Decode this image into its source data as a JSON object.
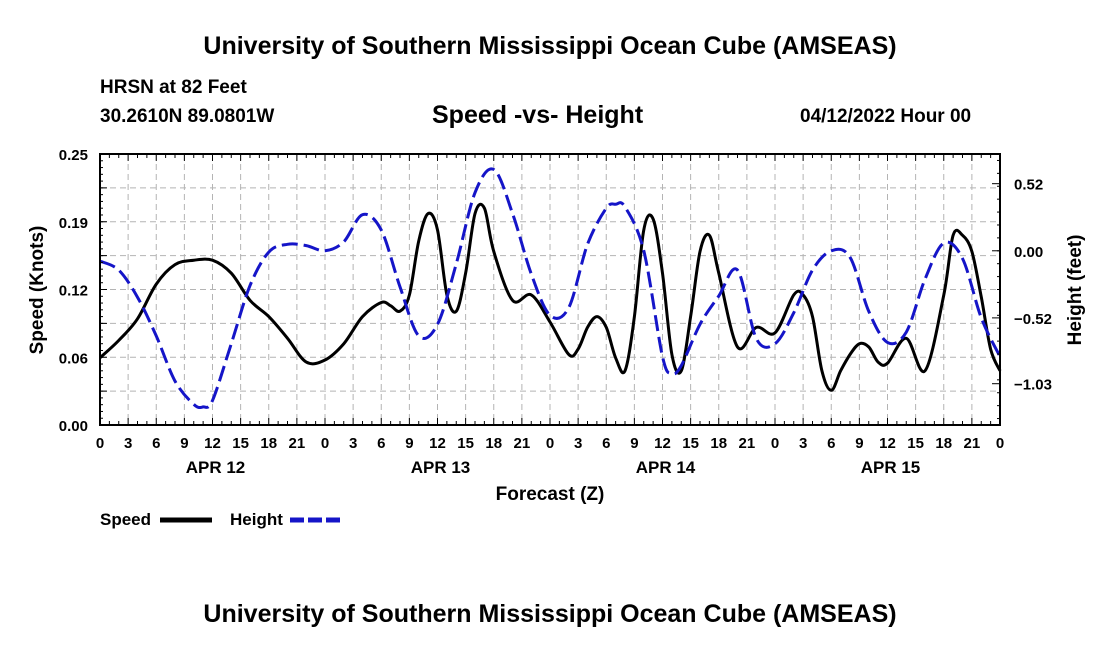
{
  "header": {
    "title": "University of Southern Mississippi Ocean Cube (AMSEAS)",
    "station": "HRSN at 82 Feet",
    "coords": "30.2610N  89.0801W",
    "date": "04/12/2022 Hour 00"
  },
  "footer": {
    "title": "University of Southern Mississippi Ocean Cube (AMSEAS)"
  },
  "legend": {
    "speed_label": "Speed",
    "height_label": "Height"
  },
  "colors": {
    "speed": "#000000",
    "height": "#1515c8",
    "grid": "#b4b4b4"
  },
  "chart_data": {
    "type": "line",
    "title": "Speed -vs- Height",
    "xlabel": "Forecast (Z)",
    "ylabel_left": "Speed (Knots)",
    "ylabel_right": "Height (feet)",
    "x_range_hours": [
      0,
      96
    ],
    "x_ticks": [
      {
        "hour": 0,
        "label": "0"
      },
      {
        "hour": 3,
        "label": "3"
      },
      {
        "hour": 6,
        "label": "6"
      },
      {
        "hour": 9,
        "label": "9"
      },
      {
        "hour": 12,
        "label": "12"
      },
      {
        "hour": 15,
        "label": "15"
      },
      {
        "hour": 18,
        "label": "18"
      },
      {
        "hour": 21,
        "label": "21"
      },
      {
        "hour": 24,
        "label": "0"
      },
      {
        "hour": 27,
        "label": "3"
      },
      {
        "hour": 30,
        "label": "6"
      },
      {
        "hour": 33,
        "label": "9"
      },
      {
        "hour": 36,
        "label": "12"
      },
      {
        "hour": 39,
        "label": "15"
      },
      {
        "hour": 42,
        "label": "18"
      },
      {
        "hour": 45,
        "label": "21"
      },
      {
        "hour": 48,
        "label": "0"
      },
      {
        "hour": 51,
        "label": "3"
      },
      {
        "hour": 54,
        "label": "6"
      },
      {
        "hour": 57,
        "label": "9"
      },
      {
        "hour": 60,
        "label": "12"
      },
      {
        "hour": 63,
        "label": "15"
      },
      {
        "hour": 66,
        "label": "18"
      },
      {
        "hour": 69,
        "label": "21"
      },
      {
        "hour": 72,
        "label": "0"
      },
      {
        "hour": 75,
        "label": "3"
      },
      {
        "hour": 78,
        "label": "6"
      },
      {
        "hour": 81,
        "label": "9"
      },
      {
        "hour": 84,
        "label": "12"
      },
      {
        "hour": 87,
        "label": "15"
      },
      {
        "hour": 90,
        "label": "18"
      },
      {
        "hour": 93,
        "label": "21"
      },
      {
        "hour": 96,
        "label": "0"
      }
    ],
    "day_labels": [
      {
        "hour": 12,
        "label": "APR 12"
      },
      {
        "hour": 36,
        "label": "APR 13"
      },
      {
        "hour": 60,
        "label": "APR 14"
      },
      {
        "hour": 84,
        "label": "APR 15"
      }
    ],
    "y_left": {
      "range": [
        0,
        0.25
      ],
      "ticks": [
        0.25,
        0.19,
        0.12,
        0.06,
        0.0
      ],
      "tick_labels": [
        "0.25",
        "0.19",
        "0.12",
        "0.06",
        "0.00"
      ]
    },
    "y_right": {
      "range": [
        -1.35,
        0.75
      ],
      "ticks": [
        0.52,
        0.0,
        -0.52,
        -1.03
      ],
      "tick_labels": [
        "0.52",
        "0.00",
        "−0.52",
        "−1.03"
      ]
    },
    "grid": true,
    "series": [
      {
        "name": "Speed",
        "axis": "left",
        "style": "solid",
        "x": [
          0,
          2,
          4,
          6,
          8,
          10,
          12,
          14,
          16,
          18,
          20,
          22,
          24,
          26,
          28,
          30,
          31,
          32,
          33,
          34,
          35,
          36,
          37,
          38,
          39,
          40,
          41,
          42,
          44,
          46,
          48,
          50,
          51,
          52,
          53,
          54,
          55,
          56,
          57,
          58,
          59,
          60,
          61,
          62,
          63,
          64,
          65,
          66,
          68,
          70,
          72,
          74,
          75,
          76,
          77,
          78,
          79,
          80,
          81,
          82,
          83,
          84,
          86,
          88,
          90,
          91,
          92,
          93,
          94,
          95,
          96
        ],
        "y": [
          0.062,
          0.078,
          0.098,
          0.13,
          0.148,
          0.152,
          0.152,
          0.14,
          0.115,
          0.1,
          0.08,
          0.058,
          0.06,
          0.075,
          0.1,
          0.113,
          0.11,
          0.105,
          0.12,
          0.17,
          0.195,
          0.18,
          0.12,
          0.105,
          0.14,
          0.195,
          0.2,
          0.16,
          0.115,
          0.12,
          0.095,
          0.065,
          0.07,
          0.09,
          0.1,
          0.09,
          0.062,
          0.05,
          0.1,
          0.18,
          0.19,
          0.14,
          0.065,
          0.05,
          0.1,
          0.16,
          0.175,
          0.14,
          0.072,
          0.09,
          0.085,
          0.12,
          0.12,
          0.1,
          0.05,
          0.032,
          0.05,
          0.065,
          0.075,
          0.072,
          0.058,
          0.057,
          0.08,
          0.05,
          0.12,
          0.175,
          0.175,
          0.16,
          0.118,
          0.07,
          0.05
        ]
      },
      {
        "name": "Height",
        "axis": "right",
        "style": "dashed",
        "x": [
          0,
          2,
          4,
          6,
          8,
          10,
          11,
          12,
          14,
          16,
          18,
          20,
          22,
          24,
          26,
          28,
          30,
          32,
          34,
          36,
          38,
          40,
          42,
          44,
          46,
          48,
          50,
          52,
          54,
          55,
          56,
          58,
          60,
          61,
          62,
          64,
          66,
          68,
          70,
          72,
          74,
          76,
          78,
          80,
          82,
          84,
          86,
          88,
          90,
          92,
          94,
          96
        ],
        "y": [
          -0.08,
          -0.15,
          -0.36,
          -0.66,
          -1.01,
          -1.19,
          -1.21,
          -1.16,
          -0.72,
          -0.27,
          -0.01,
          0.05,
          0.04,
          0.0,
          0.07,
          0.28,
          0.16,
          -0.28,
          -0.66,
          -0.57,
          -0.1,
          0.45,
          0.63,
          0.29,
          -0.18,
          -0.5,
          -0.44,
          0.05,
          0.33,
          0.36,
          0.34,
          0.0,
          -0.82,
          -0.95,
          -0.89,
          -0.57,
          -0.35,
          -0.15,
          -0.68,
          -0.72,
          -0.48,
          -0.15,
          0.0,
          -0.05,
          -0.47,
          -0.71,
          -0.63,
          -0.22,
          0.06,
          -0.06,
          -0.52,
          -0.82
        ]
      }
    ]
  }
}
